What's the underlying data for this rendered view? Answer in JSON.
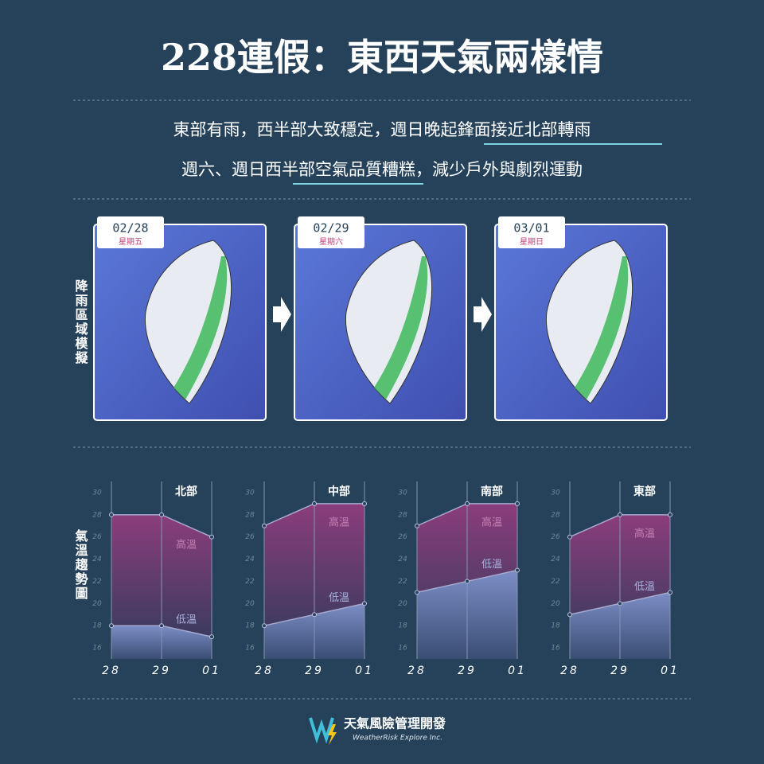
{
  "header": {
    "title": "228連假：東西天氣兩樣情",
    "line1": "東部有雨，西半部大致穩定，週日晚起鋒面接近北部轉雨",
    "line2": "週六、週日西半部空氣品質糟糕，減少戶外與劇烈運動"
  },
  "rain_section": {
    "label": "降雨區域模擬",
    "maps": [
      {
        "date": "02/28",
        "weekday": "星期五"
      },
      {
        "date": "02/29",
        "weekday": "星期六"
      },
      {
        "date": "03/01",
        "weekday": "星期日"
      }
    ]
  },
  "temp_section": {
    "label": "氣溫趨勢圖"
  },
  "chart_data": [
    {
      "type": "area",
      "title": "北部",
      "categories": [
        "28",
        "29",
        "01"
      ],
      "ylim": [
        15,
        31
      ],
      "yticks": [
        16,
        18,
        20,
        22,
        24,
        26,
        28,
        30
      ],
      "series": [
        {
          "name": "高溫",
          "color": "#8b3d7c",
          "values": [
            28,
            28,
            26
          ]
        },
        {
          "name": "低溫",
          "color": "#7c8ec6",
          "values": [
            18,
            18,
            17
          ]
        }
      ]
    },
    {
      "type": "area",
      "title": "中部",
      "categories": [
        "28",
        "29",
        "01"
      ],
      "ylim": [
        15,
        31
      ],
      "yticks": [
        16,
        18,
        20,
        22,
        24,
        26,
        28,
        30
      ],
      "series": [
        {
          "name": "高溫",
          "color": "#8b3d7c",
          "values": [
            27,
            29,
            29
          ]
        },
        {
          "name": "低溫",
          "color": "#7c8ec6",
          "values": [
            18,
            19,
            20
          ]
        }
      ]
    },
    {
      "type": "area",
      "title": "南部",
      "categories": [
        "28",
        "29",
        "01"
      ],
      "ylim": [
        15,
        31
      ],
      "yticks": [
        16,
        18,
        20,
        22,
        24,
        26,
        28,
        30
      ],
      "series": [
        {
          "name": "高溫",
          "color": "#8b3d7c",
          "values": [
            27,
            29,
            29
          ]
        },
        {
          "name": "低溫",
          "color": "#7c8ec6",
          "values": [
            21,
            22,
            23
          ]
        }
      ]
    },
    {
      "type": "area",
      "title": "東部",
      "categories": [
        "28",
        "29",
        "01"
      ],
      "ylim": [
        15,
        31
      ],
      "yticks": [
        16,
        18,
        20,
        22,
        24,
        26,
        28,
        30
      ],
      "series": [
        {
          "name": "高溫",
          "color": "#8b3d7c",
          "values": [
            26,
            28,
            28
          ]
        },
        {
          "name": "低溫",
          "color": "#7c8ec6",
          "values": [
            19,
            20,
            21
          ]
        }
      ]
    }
  ],
  "footer": {
    "brand": "天氣風險管理開發",
    "brand_en": "WeatherRisk Explore Inc."
  }
}
